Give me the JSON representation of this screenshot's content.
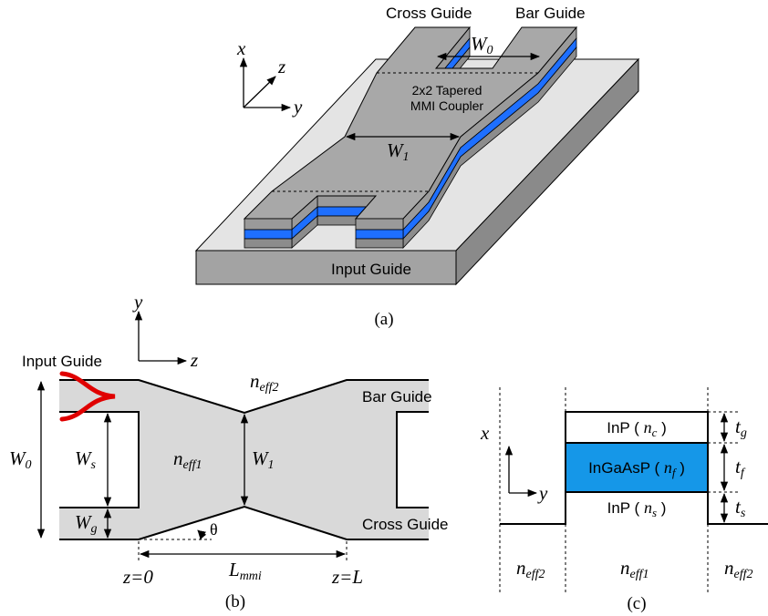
{
  "panel_a": {
    "axes": {
      "x": "x",
      "y": "y",
      "z": "z"
    },
    "cross_guide": "Cross Guide",
    "bar_guide": "Bar Guide",
    "w0": {
      "base": "W",
      "sub": "0"
    },
    "coupler_line1": "2x2 Tapered",
    "coupler_line2": "MMI Coupler",
    "w1": {
      "base": "W",
      "sub": "1"
    },
    "input_guide": "Input Guide",
    "caption": "(a)"
  },
  "panel_b": {
    "axes": {
      "y": "y",
      "z": "z"
    },
    "input_guide": "Input Guide",
    "n_eff2": {
      "base": "n",
      "sub": "eff2"
    },
    "bar_guide": "Bar Guide",
    "w0": {
      "base": "W",
      "sub": "0"
    },
    "ws": {
      "base": "W",
      "sub": "s"
    },
    "n_eff1": {
      "base": "n",
      "sub": "eff1"
    },
    "w1": {
      "base": "W",
      "sub": "1"
    },
    "wg": {
      "base": "W",
      "sub": "g"
    },
    "theta": "θ",
    "cross_guide": "Cross Guide",
    "z0": "z=0",
    "l_mmi": {
      "base": "L",
      "sub": "mmi"
    },
    "zl": "z=L",
    "caption": "(b)"
  },
  "panel_c": {
    "axes": {
      "x": "x",
      "y": "y"
    },
    "layers": [
      {
        "prefix": "InP ( ",
        "base": "n",
        "sub": "c",
        "suffix": " )"
      },
      {
        "prefix": "InGaAsP ( ",
        "base": "n",
        "sub": "f",
        "suffix": " )"
      },
      {
        "prefix": "InP ( ",
        "base": "n",
        "sub": "s",
        "suffix": " )"
      }
    ],
    "thicknesses": [
      {
        "base": "t",
        "sub": "g"
      },
      {
        "base": "t",
        "sub": "f"
      },
      {
        "base": "t",
        "sub": "s"
      }
    ],
    "regions": [
      {
        "base": "n",
        "sub": "eff2"
      },
      {
        "base": "n",
        "sub": "eff1"
      },
      {
        "base": "n",
        "sub": "eff2"
      }
    ],
    "caption": "(c)"
  }
}
